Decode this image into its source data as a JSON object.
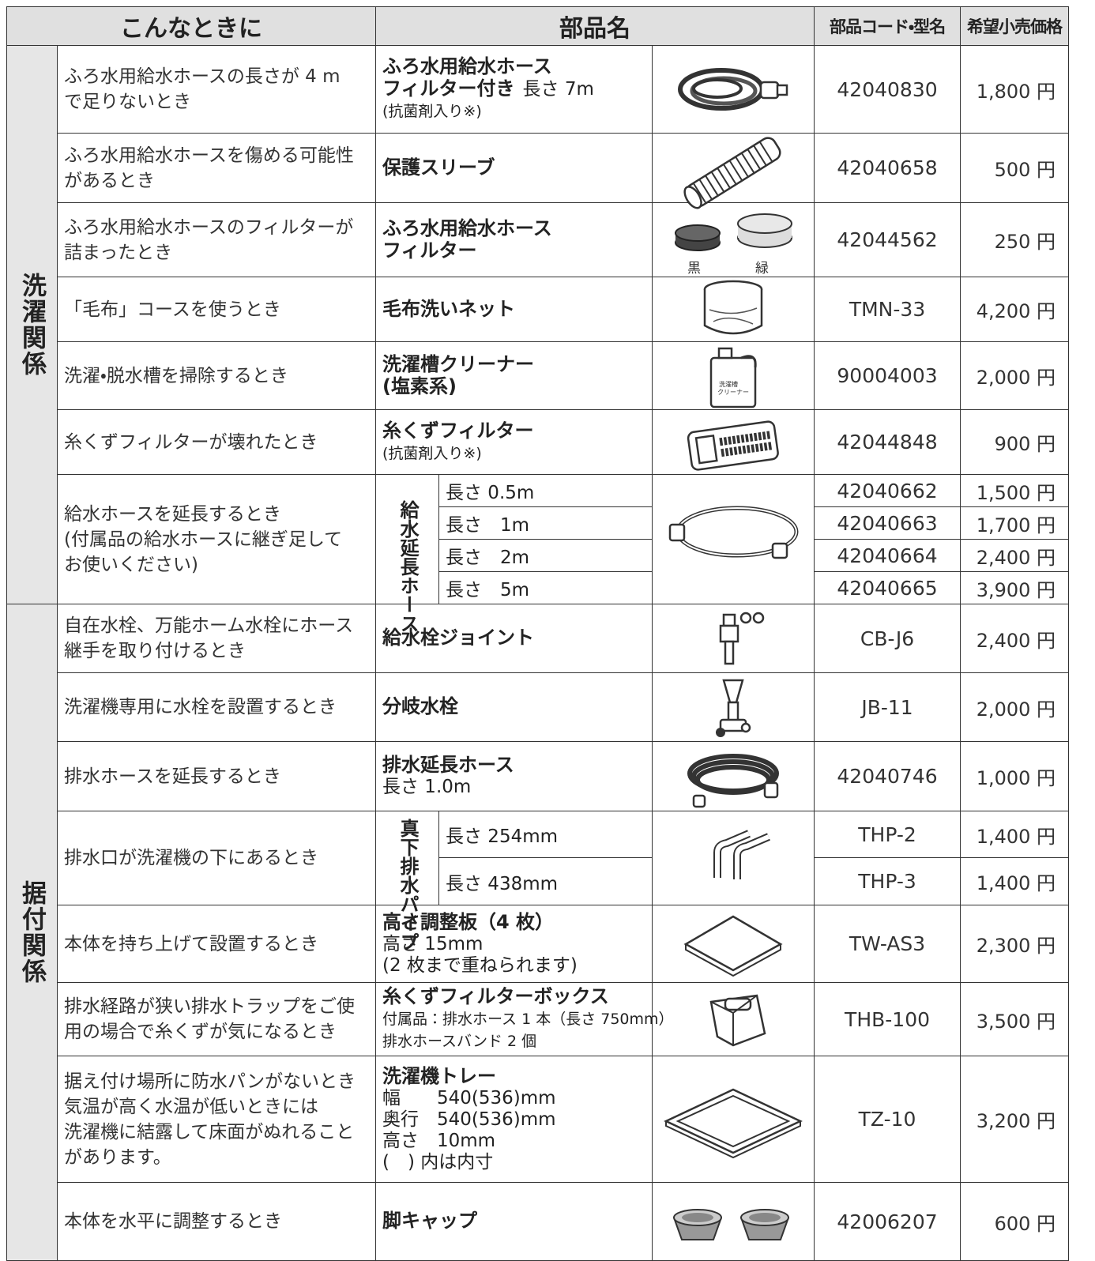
{
  "header": {
    "situation": "こんなときに",
    "part_name": "部品名",
    "code": "部品コード・型名",
    "price": "希望小売価格"
  },
  "groups": [
    {
      "label": "洗濯関係",
      "rows": [
        {
          "situation": [
            "ふろ水用給水ホースの長さが 4 m",
            "で足りないとき"
          ],
          "part": [
            [
              {
                "text": "ふろ水用給水ホース",
                "style": "bold"
              }
            ],
            [
              {
                "text": "フィルター付き",
                "style": "bold"
              },
              {
                "text": "長さ 7m",
                "style": "normal"
              }
            ],
            [
              {
                "text": "(抗菌剤入り※)",
                "style": "small"
              }
            ]
          ],
          "code": "42040830",
          "price": "1,800 円"
        },
        {
          "situation": [
            "ふろ水用給水ホースを傷める可能性",
            "があるとき"
          ],
          "part": [
            [
              {
                "text": "保護スリーブ",
                "style": "bold"
              }
            ]
          ],
          "code": "42040658",
          "price": "500 円"
        },
        {
          "situation": [
            "ふろ水用給水ホースのフィルターが",
            "詰まったとき"
          ],
          "part": [
            [
              {
                "text": "ふろ水用給水ホース",
                "style": "bold"
              }
            ],
            [
              {
                "text": "フィルター",
                "style": "bold"
              }
            ]
          ],
          "image_labels": [
            "黒",
            "緑"
          ],
          "code": "42044562",
          "price": "250 円"
        },
        {
          "situation": [
            "「毛布」コースを使うとき"
          ],
          "part": [
            [
              {
                "text": "毛布洗いネット",
                "style": "bold"
              }
            ]
          ],
          "code": "TMN-33",
          "price": "4,200 円"
        },
        {
          "situation": [
            "洗濯・脱水槽を掃除するとき"
          ],
          "part": [
            [
              {
                "text": "洗濯槽クリーナー",
                "style": "bold"
              }
            ],
            [
              {
                "text": "(塩素系)",
                "style": "bold"
              }
            ]
          ],
          "image_labels": [
            "洗濯槽",
            "クリーナー"
          ],
          "code": "90004003",
          "price": "2,000 円"
        },
        {
          "situation": [
            "糸くずフィルターが壊れたとき"
          ],
          "part": [
            [
              {
                "text": "糸くずフィルター",
                "style": "bold"
              }
            ],
            [
              {
                "text": "(抗菌剤入り※)",
                "style": "small"
              }
            ]
          ],
          "code": "42044848",
          "price": "900 円"
        },
        {
          "situation": [
            "給水ホースを延長するとき",
            "(付属品の給水ホースに継ぎ足して",
            "お使いください)"
          ],
          "part_label": "給水延長ホース",
          "variants": [
            {
              "length": "長さ 0.5m",
              "code": "42040662",
              "price": "1,500 円"
            },
            {
              "length": "長さ　1m",
              "code": "42040663",
              "price": "1,700 円"
            },
            {
              "length": "長さ　2m",
              "code": "42040664",
              "price": "2,400 円"
            },
            {
              "length": "長さ　5m",
              "code": "42040665",
              "price": "3,900 円"
            }
          ]
        }
      ]
    },
    {
      "label": "据付関係",
      "rows": [
        {
          "situation": [
            "自在水栓、万能ホーム水栓にホース",
            "継手を取り付けるとき"
          ],
          "part": [
            [
              {
                "text": "給水栓ジョイント",
                "style": "bold"
              }
            ]
          ],
          "code": "CB-J6",
          "price": "2,400 円"
        },
        {
          "situation": [
            "洗濯機専用に水栓を設置するとき"
          ],
          "part": [
            [
              {
                "text": "分岐水栓",
                "style": "bold"
              }
            ]
          ],
          "code": "JB-11",
          "price": "2,000 円"
        },
        {
          "situation": [
            "排水ホースを延長するとき"
          ],
          "part": [
            [
              {
                "text": "排水延長ホース",
                "style": "bold"
              }
            ],
            [
              {
                "text": "長さ 1.0m",
                "style": "normal"
              }
            ]
          ],
          "code": "42040746",
          "price": "1,000 円"
        },
        {
          "situation": [
            "排水口が洗濯機の下にあるとき"
          ],
          "part_label": "真下排水パイプ",
          "variants": [
            {
              "length": "長さ 254mm",
              "code": "THP-2",
              "price": "1,400 円"
            },
            {
              "length": "長さ 438mm",
              "code": "THP-3",
              "price": "1,400 円"
            }
          ]
        },
        {
          "situation": [
            "本体を持ち上げて設置するとき"
          ],
          "part": [
            [
              {
                "text": "高さ調整板（4 枚）",
                "style": "bold"
              }
            ],
            [
              {
                "text": "高さ 15mm",
                "style": "normal"
              }
            ],
            [
              {
                "text": "(2 枚まで重ねられます)",
                "style": "normal"
              }
            ]
          ],
          "code": "TW-AS3",
          "price": "2,300 円"
        },
        {
          "situation": [
            "排水経路が狭い排水トラップをご使",
            "用の場合で糸くずが気になるとき"
          ],
          "part": [
            [
              {
                "text": "糸くずフィルターボックス",
                "style": "bold"
              }
            ],
            [
              {
                "text": "付属品：排水ホース 1 本（長さ 750mm）",
                "style": "small"
              }
            ],
            [
              {
                "text": "排水ホースバンド 2 個",
                "style": "small"
              }
            ]
          ],
          "code": "THB-100",
          "price": "3,500 円"
        },
        {
          "situation": [
            "据え付け場所に防水パンがないとき",
            "気温が高く水温が低いときには",
            "洗濯機に結露して床面がぬれること",
            "があります。"
          ],
          "part": [
            [
              {
                "text": "洗濯機トレー",
                "style": "bold"
              }
            ],
            [
              {
                "text": "幅　　540(536)mm",
                "style": "normal"
              }
            ],
            [
              {
                "text": "奥行　540(536)mm",
                "style": "normal"
              }
            ],
            [
              {
                "text": "高さ　10mm",
                "style": "normal"
              }
            ],
            [
              {
                "text": "(　) 内は内寸",
                "style": "normal"
              }
            ]
          ],
          "code": "TZ-10",
          "price": "3,200 円"
        },
        {
          "situation": [
            "本体を水平に調整するとき"
          ],
          "part": [
            [
              {
                "text": "脚キャップ",
                "style": "bold"
              }
            ]
          ],
          "code": "42006207",
          "price": "600 円"
        }
      ]
    }
  ]
}
